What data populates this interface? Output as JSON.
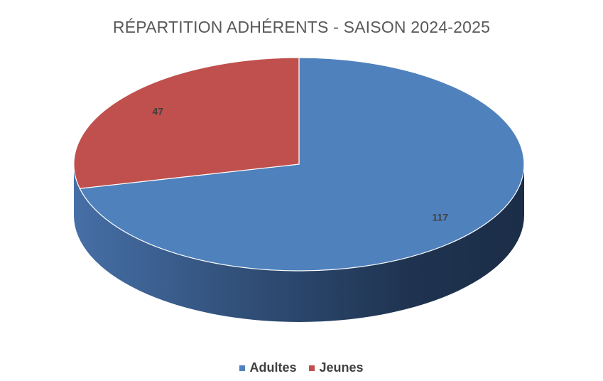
{
  "chart_data": {
    "type": "pie",
    "title": "RÉPARTITION ADHÉRENTS - SAISON 2024-2025",
    "categories": [
      "Adultes",
      "Jeunes"
    ],
    "values": [
      117,
      47
    ],
    "colors": [
      "#4F81BD",
      "#C0504D"
    ],
    "data_labels": [
      "117",
      "47"
    ],
    "legend": "bottom",
    "style": "3d"
  }
}
